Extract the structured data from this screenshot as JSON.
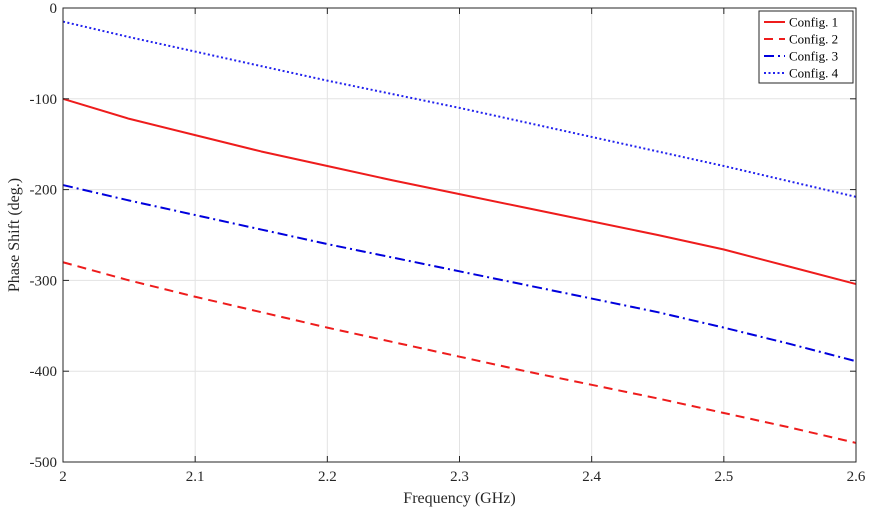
{
  "chart_data": {
    "type": "line",
    "title": "",
    "xlabel": "Frequency (GHz)",
    "ylabel": "Phase Shift (deg.)",
    "xlim": [
      2,
      2.6
    ],
    "ylim": [
      -500,
      0
    ],
    "grid": true,
    "legend_position": "top-right",
    "x_ticks": [
      2,
      2.1,
      2.2,
      2.3,
      2.4,
      2.5,
      2.6
    ],
    "x_tick_labels": [
      "2",
      "2.1",
      "2.2",
      "2.3",
      "2.4",
      "2.5",
      "2.6"
    ],
    "y_ticks": [
      0,
      -100,
      -200,
      -300,
      -400,
      -500
    ],
    "y_tick_labels": [
      "0",
      "-100",
      "-200",
      "-300",
      "-400",
      "-500"
    ],
    "x": [
      2.0,
      2.05,
      2.1,
      2.15,
      2.2,
      2.25,
      2.3,
      2.35,
      2.4,
      2.45,
      2.5,
      2.55,
      2.6
    ],
    "series": [
      {
        "name": "Config. 1",
        "color": "#ee1c1c",
        "dash": "solid",
        "values": [
          -100,
          -122,
          -140,
          -158,
          -174,
          -190,
          -205,
          -220,
          -235,
          -250,
          -266,
          -285,
          -304
        ]
      },
      {
        "name": "Config. 2",
        "color": "#ee1c1c",
        "dash": "dashed",
        "values": [
          -280,
          -300,
          -318,
          -335,
          -352,
          -368,
          -384,
          -400,
          -415,
          -430,
          -446,
          -462,
          -479
        ]
      },
      {
        "name": "Config. 3",
        "color": "#0000dd",
        "dash": "dashdot",
        "values": [
          -195,
          -212,
          -228,
          -244,
          -260,
          -275,
          -290,
          -305,
          -320,
          -335,
          -352,
          -370,
          -389
        ]
      },
      {
        "name": "Config. 4",
        "color": "#2222ee",
        "dash": "dotted",
        "values": [
          -15,
          -32,
          -48,
          -64,
          -80,
          -95,
          -110,
          -126,
          -142,
          -158,
          -174,
          -191,
          -208
        ]
      }
    ]
  }
}
